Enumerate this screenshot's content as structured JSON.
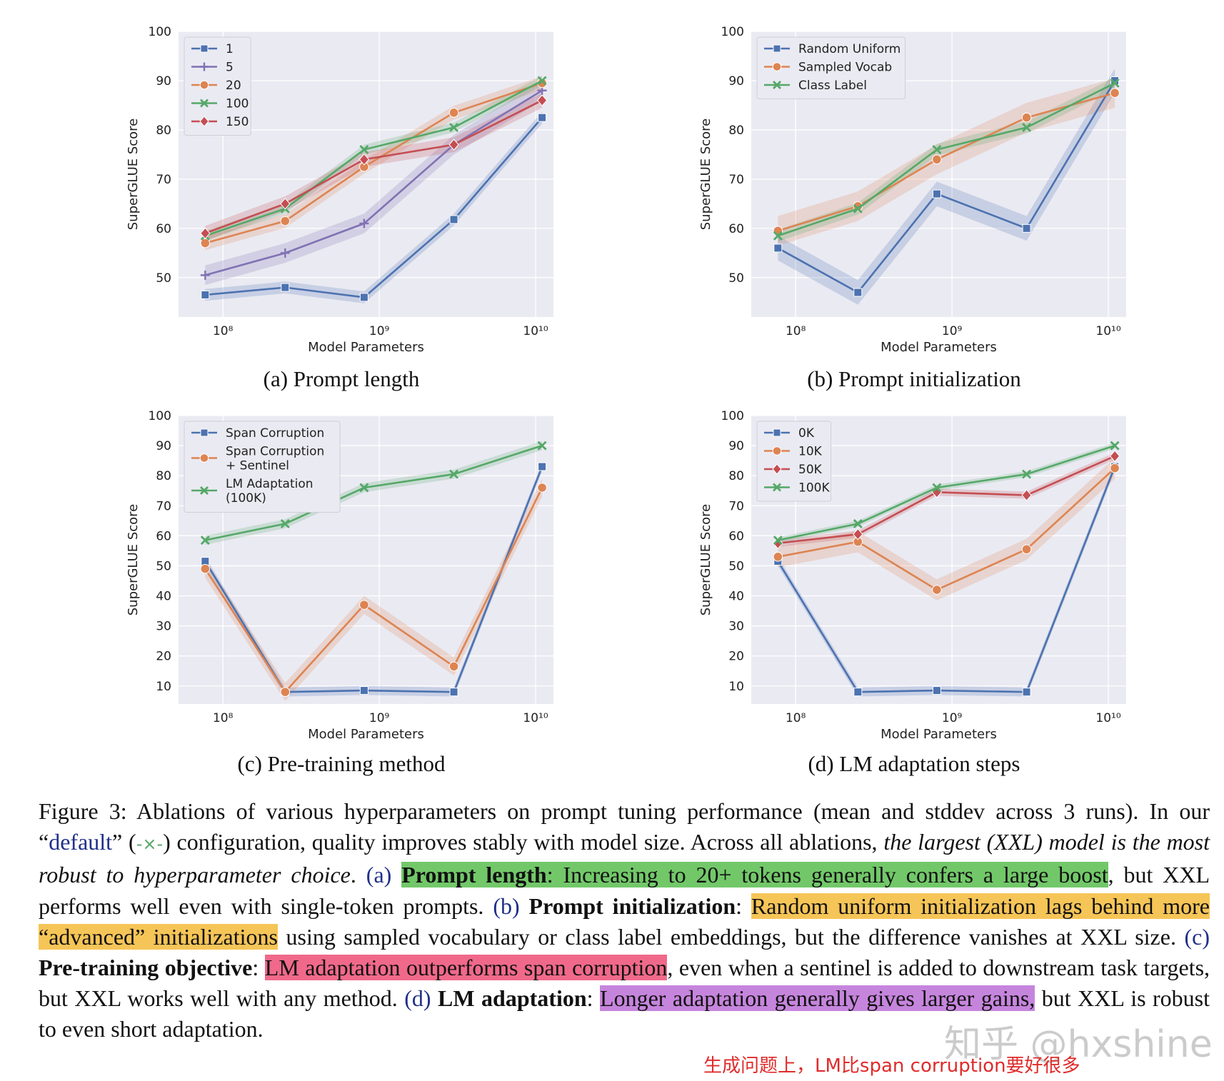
{
  "chart_data": [
    {
      "id": "a",
      "type": "line",
      "caption": "(a) Prompt length",
      "xlabel": "Model Parameters",
      "ylabel": "SuperGLUE Score",
      "xscale": "log",
      "x": [
        77000000,
        250000000,
        800000000,
        3000000000,
        11000000000
      ],
      "ylim": [
        42,
        100
      ],
      "yticks": [
        50,
        60,
        70,
        80,
        90,
        100
      ],
      "xtick_labels": [
        "10⁸",
        "10⁹",
        "10¹⁰"
      ],
      "legend_position": "top-left",
      "series": [
        {
          "name": "1",
          "color": "#4c72b0",
          "marker": "square",
          "values": [
            46.5,
            48,
            46,
            61.8,
            82.5
          ],
          "band": 1.2
        },
        {
          "name": "5",
          "color": "#8172b3",
          "marker": "plus",
          "values": [
            50.5,
            55,
            61,
            77,
            88
          ],
          "band": 2.0
        },
        {
          "name": "20",
          "color": "#dd8452",
          "marker": "circle",
          "values": [
            57,
            61.5,
            72.5,
            83.5,
            89.5
          ],
          "band": 1.4
        },
        {
          "name": "100",
          "color": "#55a868",
          "marker": "x",
          "values": [
            58.5,
            64,
            76,
            80.5,
            90
          ],
          "band": 1.0
        },
        {
          "name": "150",
          "color": "#c44e52",
          "marker": "diamond",
          "values": [
            59,
            65,
            74,
            77,
            86
          ],
          "band": 1.5
        }
      ]
    },
    {
      "id": "b",
      "type": "line",
      "caption": "(b) Prompt initialization",
      "xlabel": "Model Parameters",
      "ylabel": "SuperGLUE Score",
      "xscale": "log",
      "x": [
        77000000,
        250000000,
        800000000,
        3000000000,
        11000000000
      ],
      "ylim": [
        42,
        100
      ],
      "yticks": [
        50,
        60,
        70,
        80,
        90,
        100
      ],
      "xtick_labels": [
        "10⁸",
        "10⁹",
        "10¹⁰"
      ],
      "legend_position": "top-left",
      "series": [
        {
          "name": "Random Uniform",
          "color": "#4c72b0",
          "marker": "square",
          "values": [
            56,
            47,
            67,
            60,
            90
          ],
          "band": 2.5
        },
        {
          "name": "Sampled Vocab",
          "color": "#dd8452",
          "marker": "circle",
          "values": [
            59.5,
            64.5,
            74,
            82.5,
            87.5
          ],
          "band": 3.0
        },
        {
          "name": "Class Label",
          "color": "#55a868",
          "marker": "x",
          "values": [
            58.5,
            64,
            76,
            80.5,
            89.5
          ],
          "band": 1.2
        }
      ]
    },
    {
      "id": "c",
      "type": "line",
      "caption": "(c) Pre-training method",
      "xlabel": "Model Parameters",
      "ylabel": "SuperGLUE Score",
      "xscale": "log",
      "x": [
        77000000,
        250000000,
        800000000,
        3000000000,
        11000000000
      ],
      "ylim": [
        4,
        100
      ],
      "yticks": [
        10,
        20,
        30,
        40,
        50,
        60,
        70,
        80,
        90,
        100
      ],
      "xtick_labels": [
        "10⁸",
        "10⁹",
        "10¹⁰"
      ],
      "legend_position": "top-left",
      "series": [
        {
          "name": "Span Corruption",
          "color": "#4c72b0",
          "marker": "square",
          "values": [
            51.5,
            8,
            8.5,
            8,
            83
          ],
          "band": 1.5
        },
        {
          "name": "Span Corruption + Sentinel",
          "color": "#dd8452",
          "marker": "circle",
          "values": [
            49,
            8,
            37,
            16.5,
            76
          ],
          "band": 3.0
        },
        {
          "name": "LM Adaptation (100K)",
          "color": "#55a868",
          "marker": "x",
          "values": [
            58.5,
            64,
            76,
            80.5,
            90
          ],
          "band": 1.5
        }
      ]
    },
    {
      "id": "d",
      "type": "line",
      "caption": "(d) LM adaptation steps",
      "xlabel": "Model Parameters",
      "ylabel": "SuperGLUE Score",
      "xscale": "log",
      "x": [
        77000000,
        250000000,
        800000000,
        3000000000,
        11000000000
      ],
      "ylim": [
        4,
        100
      ],
      "yticks": [
        10,
        20,
        30,
        40,
        50,
        60,
        70,
        80,
        90,
        100
      ],
      "xtick_labels": [
        "10⁸",
        "10⁹",
        "10¹⁰"
      ],
      "legend_position": "top-left",
      "series": [
        {
          "name": "0K",
          "color": "#4c72b0",
          "marker": "square",
          "values": [
            51.5,
            8,
            8.5,
            8,
            83
          ],
          "band": 1.5
        },
        {
          "name": "10K",
          "color": "#dd8452",
          "marker": "circle",
          "values": [
            53,
            58,
            42,
            55.5,
            82.5
          ],
          "band": 3.5
        },
        {
          "name": "50K",
          "color": "#c44e52",
          "marker": "diamond",
          "values": [
            57.5,
            60.5,
            74.5,
            73.5,
            86.5
          ],
          "band": 1.2
        },
        {
          "name": "100K",
          "color": "#55a868",
          "marker": "x",
          "values": [
            58.5,
            64,
            76,
            80.5,
            90
          ],
          "band": 1.0
        }
      ]
    }
  ],
  "caption": {
    "figure_label": "Figure 3:",
    "intro": "Ablations of various hyperparameters on prompt tuning performance (mean and stddev across 3 runs). In our “",
    "default_word": "default",
    "mid1": "” (",
    "default_marker": "-×-",
    "mid2": ") configuration, quality improves stably with model size. Across all ablations, ",
    "italic": "the largest (XXL) model is the most robust to hyperparameter choice",
    "mid3": ". ",
    "ref_a": "(a)",
    "bold_a": "Prompt length",
    "hl_a": ": Increasing to 20+ tokens generally confers a large boost",
    "text_a": ", but XXL performs well even with single-token prompts. ",
    "ref_b": "(b)",
    "bold_b": "Prompt initialization",
    "colon_b": ": ",
    "hl_b": "Random uniform initialization lags behind more “advanced” initializations",
    "text_b": " using sampled vocabulary or class label embeddings, but the difference vanishes at XXL size. ",
    "ref_c": "(c)",
    "bold_c": "Pre-training objective",
    "colon_c": ": ",
    "hl_c": "LM adaptation outperforms span corruption",
    "text_c": ", even when a sentinel is added to downstream task targets, but XXL works well with any method. ",
    "ref_d": "(d)",
    "bold_d": "LM adaptation",
    "colon_d": ": ",
    "hl_d": "Longer adaptation generally gives larger gains,",
    "text_d": " but XXL is robust to even short adaptation."
  },
  "annotation_note": "生成问题上，LM比span corruption要好很多",
  "watermark": "知乎 @hxshine"
}
